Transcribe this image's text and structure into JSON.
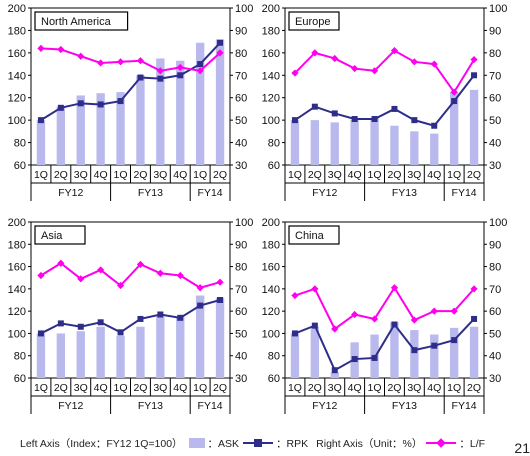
{
  "colors": {
    "ask": "#b9b9ee",
    "rpk": "#2e2e8a",
    "lf": "#ff00ee",
    "axis": "#000000"
  },
  "chart_data": [
    {
      "type": "bar",
      "title": "North America",
      "categories": [
        "1Q",
        "2Q",
        "3Q",
        "4Q",
        "1Q",
        "2Q",
        "3Q",
        "4Q",
        "1Q",
        "2Q"
      ],
      "groups": [
        {
          "label": "FY12",
          "span": 4
        },
        {
          "label": "FY13",
          "span": 4
        },
        {
          "label": "FY14",
          "span": 2
        }
      ],
      "ylim_left": [
        60,
        200
      ],
      "yticks_left": [
        60,
        80,
        100,
        120,
        140,
        160,
        180,
        200
      ],
      "ylim_right": [
        30,
        100
      ],
      "yticks_right": [
        30,
        40,
        50,
        60,
        70,
        80,
        90,
        100
      ],
      "series": [
        {
          "name": "ASK",
          "type": "bar",
          "axis": "left",
          "values": [
            100,
            112,
            122,
            124,
            125,
            140,
            155,
            153,
            169,
            172
          ]
        },
        {
          "name": "RPK",
          "type": "line",
          "axis": "left",
          "values": [
            100,
            111,
            115,
            114,
            117,
            138,
            137,
            140,
            150,
            169
          ]
        },
        {
          "name": "L/F",
          "type": "line",
          "axis": "right",
          "values": [
            82,
            81.5,
            78.5,
            75.5,
            76,
            76.5,
            72,
            73.5,
            72,
            80
          ]
        }
      ]
    },
    {
      "type": "bar",
      "title": "Europe",
      "categories": [
        "1Q",
        "2Q",
        "3Q",
        "4Q",
        "1Q",
        "2Q",
        "3Q",
        "4Q",
        "1Q",
        "2Q"
      ],
      "groups": [
        {
          "label": "FY12",
          "span": 4
        },
        {
          "label": "FY13",
          "span": 4
        },
        {
          "label": "FY14",
          "span": 2
        }
      ],
      "ylim_left": [
        60,
        200
      ],
      "yticks_left": [
        60,
        80,
        100,
        120,
        140,
        160,
        180,
        200
      ],
      "ylim_right": [
        30,
        100
      ],
      "yticks_right": [
        30,
        40,
        50,
        60,
        70,
        80,
        90,
        100
      ],
      "series": [
        {
          "name": "ASK",
          "type": "bar",
          "axis": "left",
          "values": [
            100,
            100,
            98,
            100,
            102,
            95,
            90,
            88,
            125,
            127
          ]
        },
        {
          "name": "RPK",
          "type": "line",
          "axis": "left",
          "values": [
            100,
            112,
            106,
            101,
            101,
            110,
            100,
            95,
            117,
            140
          ]
        },
        {
          "name": "L/F",
          "type": "line",
          "axis": "right",
          "values": [
            71,
            80,
            77.5,
            73,
            72,
            81,
            76,
            75,
            62.5,
            77
          ]
        }
      ]
    },
    {
      "type": "bar",
      "title": "Asia",
      "categories": [
        "1Q",
        "2Q",
        "3Q",
        "4Q",
        "1Q",
        "2Q",
        "3Q",
        "4Q",
        "1Q",
        "2Q"
      ],
      "groups": [
        {
          "label": "FY12",
          "span": 4
        },
        {
          "label": "FY13",
          "span": 4
        },
        {
          "label": "FY14",
          "span": 2
        }
      ],
      "ylim_left": [
        60,
        200
      ],
      "yticks_left": [
        60,
        80,
        100,
        120,
        140,
        160,
        180,
        200
      ],
      "ylim_right": [
        30,
        100
      ],
      "yticks_right": [
        30,
        40,
        50,
        60,
        70,
        80,
        90,
        100
      ],
      "series": [
        {
          "name": "ASK",
          "type": "bar",
          "axis": "left",
          "values": [
            100,
            100,
            102,
            106,
            98,
            106,
            115,
            115,
            134,
            132
          ]
        },
        {
          "name": "RPK",
          "type": "line",
          "axis": "left",
          "values": [
            100,
            109,
            106,
            110,
            101,
            113,
            117,
            114,
            125,
            130
          ]
        },
        {
          "name": "L/F",
          "type": "line",
          "axis": "right",
          "values": [
            76,
            81.5,
            74.5,
            78.5,
            71.5,
            81,
            77,
            76,
            70.5,
            73
          ]
        }
      ]
    },
    {
      "type": "bar",
      "title": "China",
      "categories": [
        "1Q",
        "2Q",
        "3Q",
        "4Q",
        "1Q",
        "2Q",
        "3Q",
        "4Q",
        "1Q",
        "2Q"
      ],
      "groups": [
        {
          "label": "FY12",
          "span": 4
        },
        {
          "label": "FY13",
          "span": 4
        },
        {
          "label": "FY14",
          "span": 2
        }
      ],
      "ylim_left": [
        60,
        200
      ],
      "yticks_left": [
        60,
        80,
        100,
        120,
        140,
        160,
        180,
        200
      ],
      "ylim_right": [
        30,
        100
      ],
      "yticks_right": [
        30,
        40,
        50,
        60,
        70,
        80,
        90,
        100
      ],
      "series": [
        {
          "name": "ASK",
          "type": "bar",
          "axis": "left",
          "values": [
            100,
            106,
            65,
            92,
            99,
            110,
            103,
            99,
            105,
            106
          ]
        },
        {
          "name": "RPK",
          "type": "line",
          "axis": "left",
          "values": [
            100,
            107,
            67,
            77,
            78,
            108,
            85,
            89,
            94,
            113
          ]
        },
        {
          "name": "L/F",
          "type": "line",
          "axis": "right",
          "values": [
            67,
            70,
            52,
            58.5,
            56.5,
            70.5,
            56,
            60,
            60,
            70
          ]
        }
      ]
    }
  ],
  "legend": {
    "left_axis_label": "Left Axis（Index：FY12 1Q=100）",
    "ask_label": "：ASK",
    "rpk_label": "：RPK",
    "right_axis_label": "Right Axis（Unit：%）",
    "lf_label": "：L/F"
  },
  "page_number": "21"
}
